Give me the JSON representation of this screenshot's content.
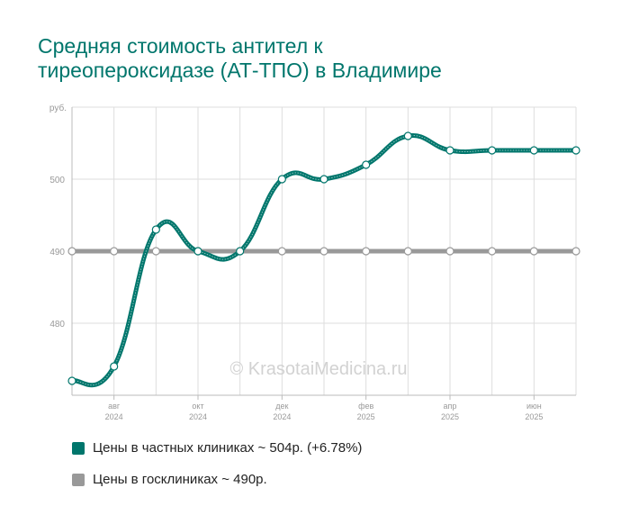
{
  "colors": {
    "private": "#00766c",
    "public": "#999999",
    "title": "#00766c"
  },
  "title_lines": [
    "Средняя стоимость антител к",
    "тиреопероксидазе (АТ-ТПО) в Владимире"
  ],
  "watermark": "© KrasotaiMedicina.ru",
  "legend": [
    {
      "label": "Цены в частных клиниках ~ 504р. (+6.78%)",
      "color": "#00766c"
    },
    {
      "label": "Цены в госклиниках ~ 490р.",
      "color": "#999999"
    }
  ],
  "chart_data": {
    "type": "line",
    "title": "Средняя стоимость антител к тиреопероксидазе (АТ-ТПО) в Владимире",
    "ylabel": "руб.",
    "ylim": [
      470,
      510
    ],
    "yticks": [
      480,
      490,
      500
    ],
    "x": [
      "2024-06",
      "2024-07",
      "2024-08",
      "2024-09",
      "2024-10",
      "2024-11",
      "2024-12",
      "2025-01",
      "2025-02",
      "2025-03",
      "2025-04",
      "2025-05",
      "2025-06"
    ],
    "x_tick_labels": [
      {
        "x": "2024-07",
        "month": "авг",
        "year": "2024"
      },
      {
        "x": "2024-09",
        "month": "окт",
        "year": "2024"
      },
      {
        "x": "2024-11",
        "month": "дек",
        "year": "2024"
      },
      {
        "x": "2025-01",
        "month": "фев",
        "year": "2025"
      },
      {
        "x": "2025-03",
        "month": "апр",
        "year": "2025"
      },
      {
        "x": "2025-05",
        "month": "июн",
        "year": "2025"
      }
    ],
    "grid": true,
    "legend_position": "bottom-left",
    "series": [
      {
        "name": "Цены в частных клиниках ~ 504р. (+6.78%)",
        "color": "#00766c",
        "values": [
          472,
          474,
          493,
          490,
          490,
          500,
          500,
          502,
          506,
          504,
          504,
          504,
          504
        ]
      },
      {
        "name": "Цены в госклиниках ~ 490р.",
        "color": "#999999",
        "values": [
          490,
          490,
          490,
          490,
          490,
          490,
          490,
          490,
          490,
          490,
          490,
          490,
          490
        ]
      }
    ]
  }
}
